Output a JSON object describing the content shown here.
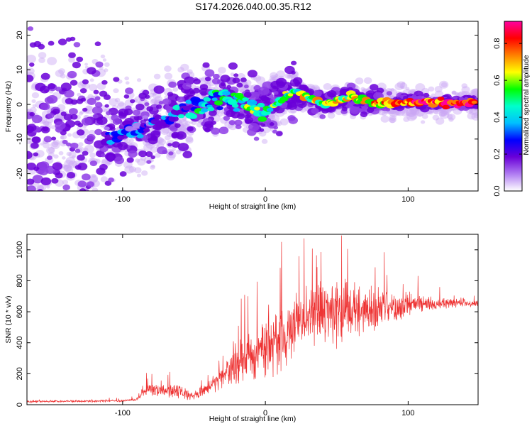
{
  "title": "S174.2026.040.00.35.R12",
  "chart_data": [
    {
      "type": "heatmap",
      "name": "spectrogram",
      "xlabel": "Height of straight line (km)",
      "ylabel": "Frequency (Hz)",
      "xlim": [
        -167,
        149
      ],
      "ylim": [
        -25,
        24
      ],
      "x_ticks": [
        -100,
        0,
        100
      ],
      "y_ticks": [
        -20,
        -10,
        0,
        10,
        20
      ],
      "colorbar": {
        "label": "Normalized spectral amplitude",
        "range": [
          0,
          0.92
        ],
        "ticks": [
          "0.0",
          "0.2",
          "0.4",
          "0.6",
          "0.8"
        ],
        "tick_values": [
          0.0,
          0.2,
          0.4,
          0.6,
          0.8
        ],
        "colors": [
          "#ffffff",
          "#b07cf2",
          "#6a00d8",
          "#0000ff",
          "#00bfff",
          "#00ffcc",
          "#00ff00",
          "#ffff00",
          "#ff8000",
          "#ff0000",
          "#ff00a0"
        ]
      },
      "ridge": {
        "description_points": [
          [
            -110,
            -10
          ],
          [
            -90,
            -7
          ],
          [
            -60,
            -3
          ],
          [
            -30,
            2
          ],
          [
            0,
            -2
          ],
          [
            20,
            4
          ],
          [
            40,
            0
          ],
          [
            60,
            2
          ],
          [
            80,
            0
          ],
          [
            100,
            1
          ],
          [
            120,
            0.5
          ],
          [
            147,
            0.5
          ]
        ]
      }
    },
    {
      "type": "line",
      "name": "snr",
      "xlabel": "Height of straight line (km)",
      "ylabel": "SNR (10 * v/v)",
      "xlim": [
        -167,
        149
      ],
      "ylim": [
        0,
        1100
      ],
      "x_ticks": [
        -100,
        0,
        100
      ],
      "y_ticks": [
        0,
        200,
        400,
        600,
        800,
        1000
      ],
      "color": "#ee3333",
      "envelope": {
        "x": [
          -167,
          -100,
          -90,
          -85,
          -80,
          -60,
          -50,
          -40,
          -30,
          -20,
          -10,
          0,
          10,
          20,
          25,
          30,
          40,
          50,
          60,
          70,
          80,
          90,
          100,
          110,
          120,
          130,
          149
        ],
        "mean": [
          20,
          25,
          35,
          90,
          100,
          80,
          60,
          110,
          180,
          260,
          330,
          380,
          420,
          510,
          560,
          580,
          600,
          620,
          620,
          610,
          620,
          630,
          640,
          650,
          650,
          660,
          650
        ],
        "spread": [
          10,
          10,
          15,
          50,
          70,
          80,
          50,
          60,
          130,
          220,
          260,
          280,
          320,
          300,
          280,
          280,
          300,
          320,
          300,
          260,
          220,
          160,
          100,
          80,
          60,
          50,
          40
        ]
      }
    }
  ]
}
